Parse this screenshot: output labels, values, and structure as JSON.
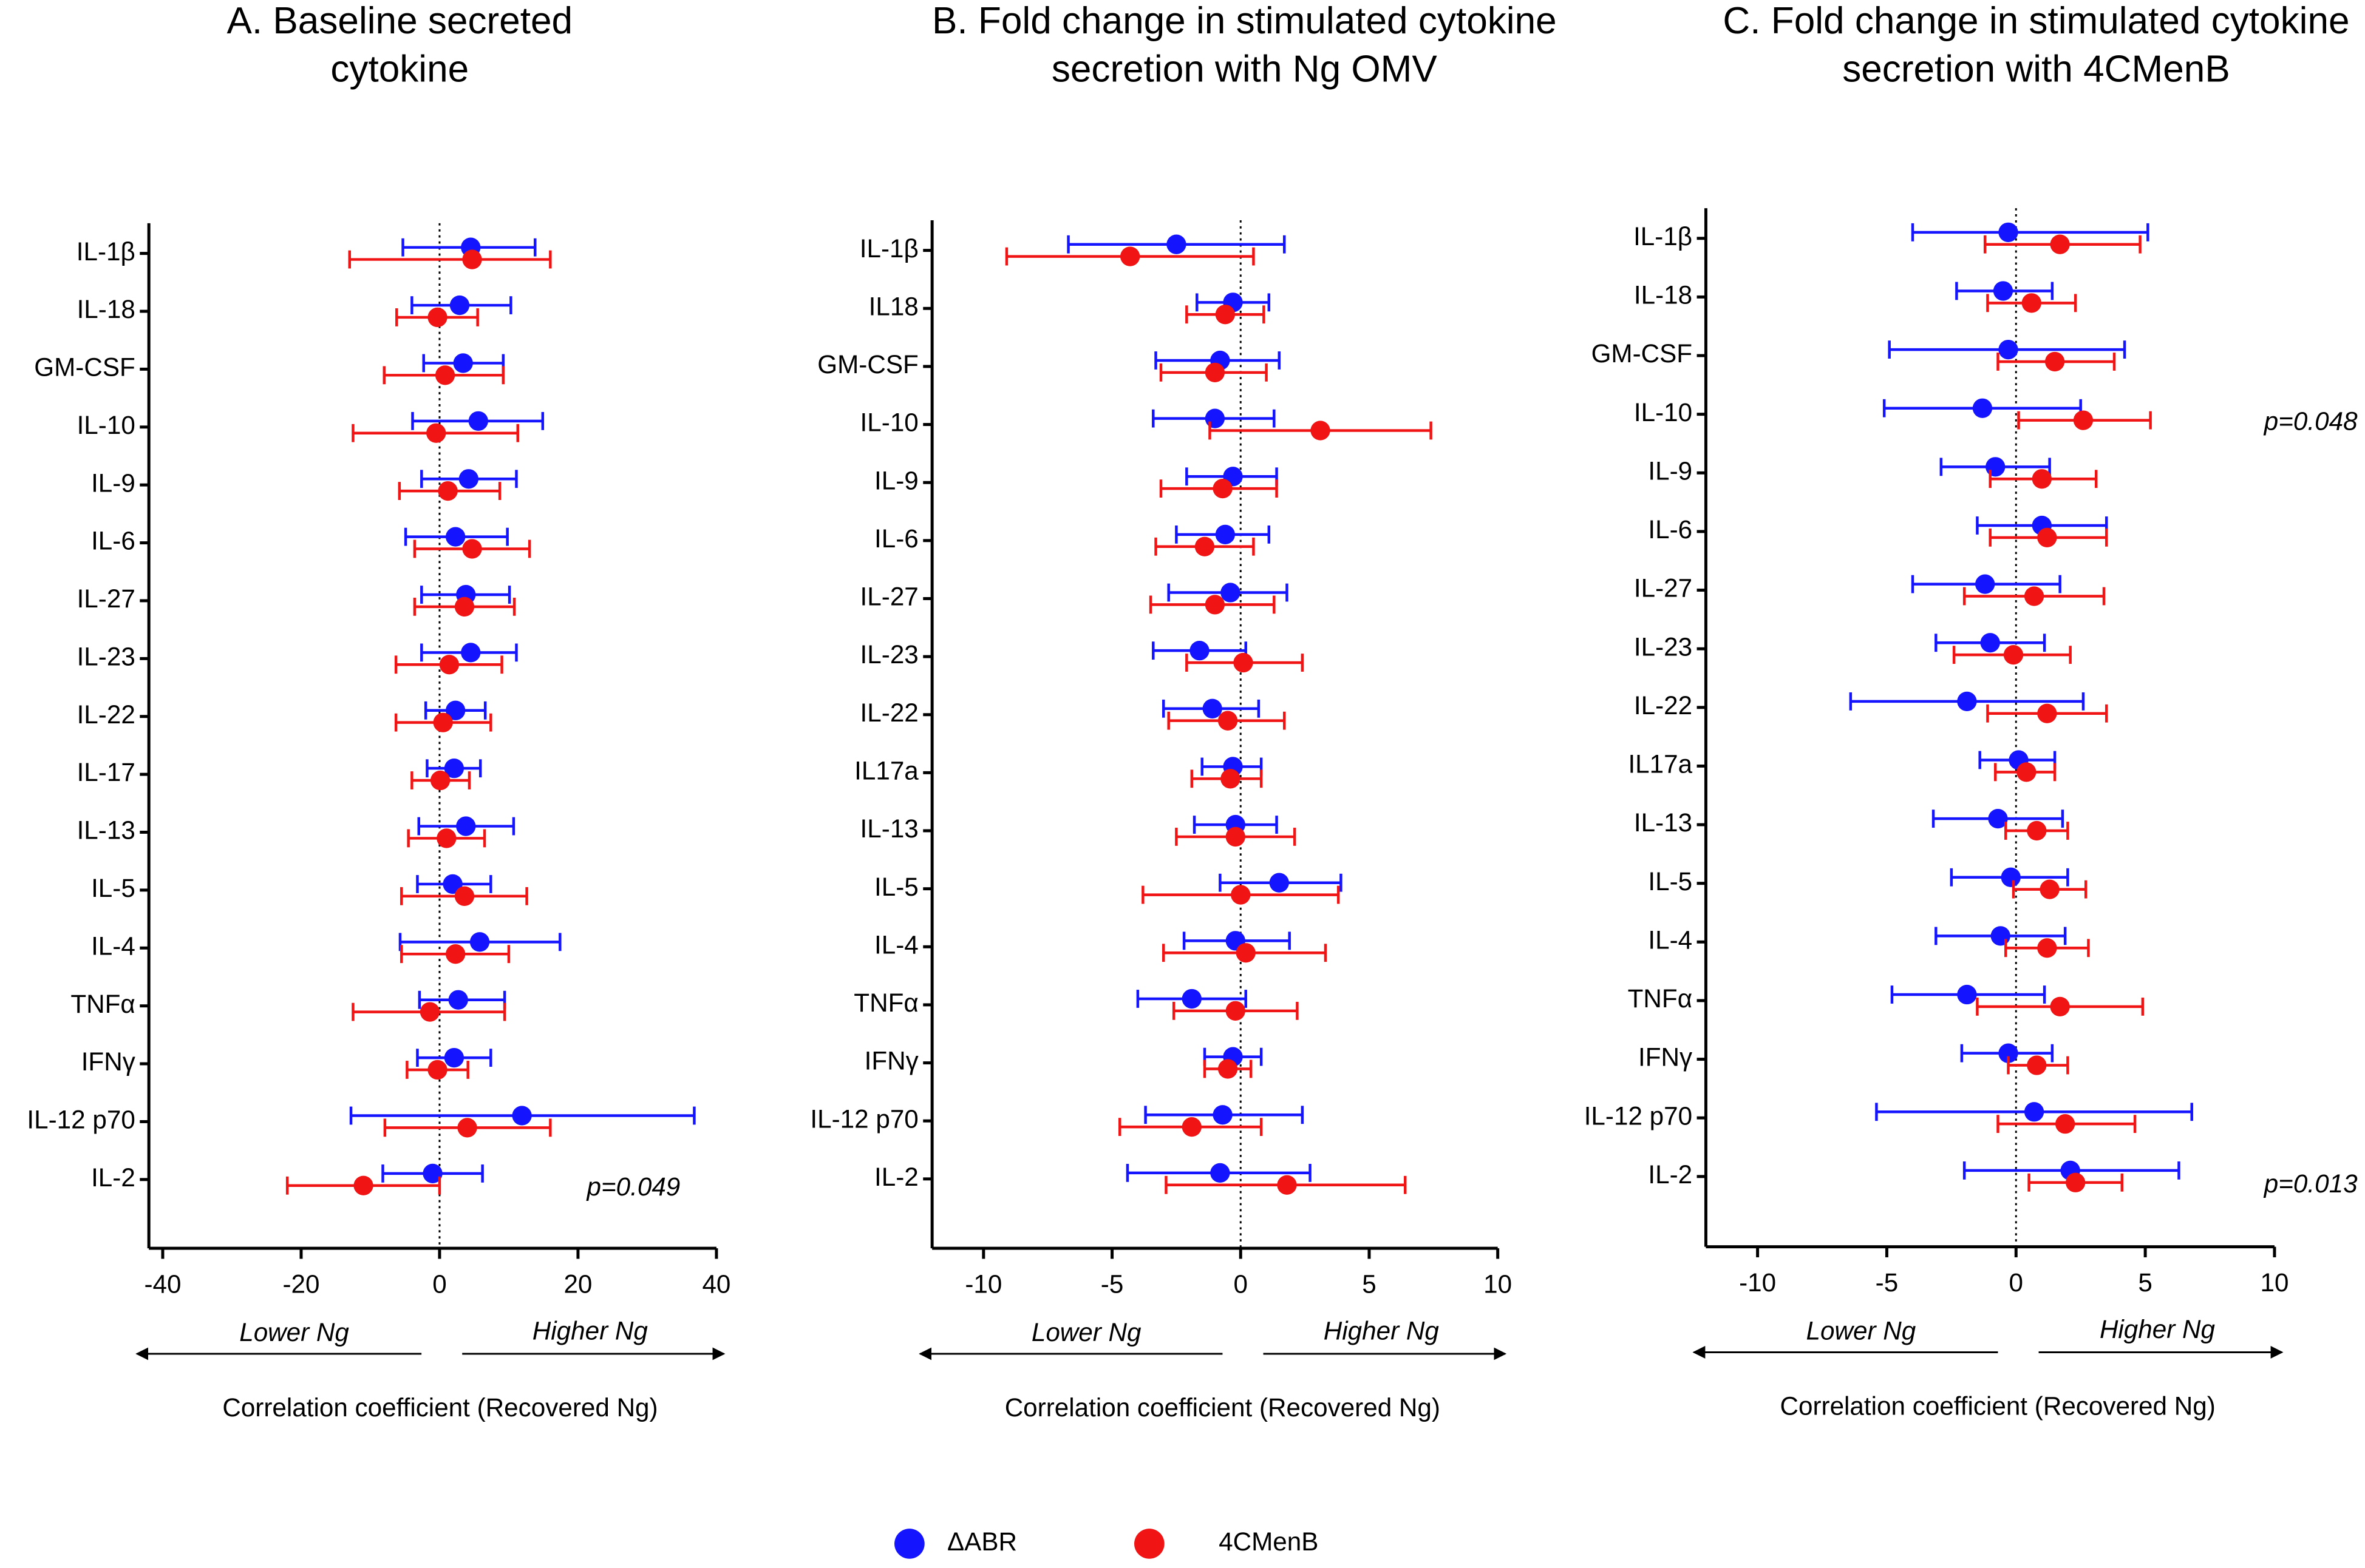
{
  "chart_data": [
    {
      "type": "forest",
      "title": "A. Baseline secreted cytokine",
      "categories": [
        "IL-1β",
        "IL-18",
        "GM-CSF",
        "IL-10",
        "IL-9",
        "IL-6",
        "IL-27",
        "IL-23",
        "IL-22",
        "IL-17",
        "IL-13",
        "IL-5",
        "IL-4",
        "TNFα",
        "IFNγ",
        "IL-12 p70",
        "IL-2"
      ],
      "series": [
        {
          "name": "ΔABR",
          "color": "#1414ff",
          "values": [
            4.5,
            2.9,
            3.4,
            5.6,
            4.2,
            2.3,
            3.8,
            4.5,
            2.3,
            2.1,
            3.8,
            1.9,
            5.8,
            2.7,
            2.1,
            11.9,
            -1
          ],
          "low": [
            -5.3,
            -4,
            -2.3,
            -3.9,
            -2.6,
            -4.9,
            -2.6,
            -2.6,
            -2,
            -1.8,
            -3,
            -3.2,
            -5.7,
            -2.9,
            -3.2,
            -12.8,
            -8.2
          ],
          "high": [
            13.8,
            10.3,
            9.2,
            14.9,
            11.1,
            9.8,
            10.1,
            11.1,
            6.6,
            5.9,
            10.7,
            7.4,
            17.4,
            9.4,
            7.4,
            36.8,
            6.2
          ]
        },
        {
          "name": "4CMenB",
          "color": "#f01414",
          "values": [
            4.7,
            -0.3,
            0.8,
            -0.5,
            1.2,
            4.7,
            3.6,
            1.4,
            0.5,
            0.1,
            1,
            3.6,
            2.3,
            -1.4,
            -0.3,
            4,
            -11
          ],
          "low": [
            -13,
            -6.2,
            -8,
            -12.5,
            -5.8,
            -3.6,
            -3.6,
            -6.3,
            -6.3,
            -4,
            -4.5,
            -5.5,
            -5.5,
            -12.5,
            -4.7,
            -7.9,
            -22
          ],
          "high": [
            16,
            5.5,
            9.2,
            11.3,
            8.7,
            13,
            10.8,
            9,
            7.4,
            4.3,
            6.5,
            12.6,
            10,
            9.4,
            4.1,
            16,
            0
          ]
        }
      ],
      "xlim": [
        -42,
        40
      ],
      "xticks": [
        -40,
        -20,
        0,
        20,
        40
      ],
      "xlabel": "Correlation coefficient (Recovered Ng)",
      "lower_label": "Lower Ng",
      "higher_label": "Higher Ng",
      "annotations": [
        {
          "text": "p=0.049",
          "category": "IL-2"
        }
      ]
    },
    {
      "type": "forest",
      "title": "B. Fold change in stimulated cytokine secretion with Ng OMV",
      "categories": [
        "IL-1β",
        "IL18",
        "GM-CSF",
        "IL-10",
        "IL-9",
        "IL-6",
        "IL-27",
        "IL-23",
        "IL-22",
        "IL17a",
        "IL-13",
        "IL-5",
        "IL-4",
        "TNFα",
        "IFNγ",
        "IL-12 p70",
        "IL-2"
      ],
      "series": [
        {
          "color": "#1414ff",
          "values": [
            -2.5,
            -0.3,
            -0.8,
            -1,
            -0.3,
            -0.6,
            -0.4,
            -1.6,
            -1.1,
            -0.3,
            -0.2,
            1.5,
            -0.2,
            -1.9,
            -0.3,
            -0.7,
            -0.8
          ],
          "low": [
            -6.7,
            -1.7,
            -3.3,
            -3.4,
            -2.1,
            -2.5,
            -2.8,
            -3.4,
            -3,
            -1.5,
            -1.8,
            -0.8,
            -2.2,
            -4,
            -1.4,
            -3.7,
            -4.4
          ],
          "high": [
            1.7,
            1.1,
            1.5,
            1.3,
            1.4,
            1.1,
            1.8,
            0.2,
            0.7,
            0.8,
            1.4,
            3.9,
            1.9,
            0.2,
            0.8,
            2.4,
            2.7
          ]
        },
        {
          "color": "#f01414",
          "values": [
            -4.3,
            -0.6,
            -1,
            3.1,
            -0.7,
            -1.4,
            -1,
            0.1,
            -0.5,
            -0.4,
            -0.2,
            0,
            0.2,
            -0.2,
            -0.5,
            -1.9,
            1.8
          ],
          "low": [
            -9.1,
            -2.1,
            -3.1,
            -1.2,
            -3.1,
            -3.3,
            -3.5,
            -2.1,
            -2.8,
            -1.9,
            -2.5,
            -3.8,
            -3,
            -2.6,
            -1.4,
            -4.7,
            -2.9
          ],
          "high": [
            0.5,
            0.9,
            1,
            7.4,
            1.4,
            0.5,
            1.3,
            2.4,
            1.7,
            0.8,
            2.1,
            3.8,
            3.3,
            2.2,
            0.4,
            0.8,
            6.4
          ]
        }
      ],
      "xlim": [
        -12,
        10
      ],
      "xticks": [
        -10,
        -5,
        0,
        5,
        10
      ],
      "xlabel": "Correlation coefficient (Recovered Ng)",
      "lower_label": "Lower Ng",
      "higher_label": "Higher Ng"
    },
    {
      "type": "forest",
      "title": "C. Fold change in stimulated cytokine secretion with 4CMenB",
      "categories": [
        "IL-1β",
        "IL-18",
        "GM-CSF",
        "IL-10",
        "IL-9",
        "IL-6",
        "IL-27",
        "IL-23",
        "IL-22",
        "IL17a",
        "IL-13",
        "IL-5",
        "IL-4",
        "TNFα",
        "IFNγ",
        "IL-12 p70",
        "IL-2"
      ],
      "series": [
        {
          "color": "#1414ff",
          "values": [
            -0.3,
            -0.5,
            -0.3,
            -1.3,
            -0.8,
            1,
            -1.2,
            -1,
            -1.9,
            0.1,
            -0.7,
            -0.2,
            -0.6,
            -1.9,
            -0.3,
            0.7,
            2.1
          ],
          "low": [
            -4,
            -2.3,
            -4.9,
            -5.1,
            -2.9,
            -1.5,
            -4,
            -3.1,
            -6.4,
            -1.4,
            -3.2,
            -2.5,
            -3.1,
            -4.8,
            -2.1,
            -5.4,
            -2
          ],
          "high": [
            5.1,
            1.4,
            4.2,
            2.5,
            1.3,
            3.5,
            1.7,
            1.1,
            2.6,
            1.5,
            1.8,
            2,
            1.9,
            1.1,
            1.4,
            6.8,
            6.3
          ]
        },
        {
          "color": "#f01414",
          "values": [
            1.7,
            0.6,
            1.5,
            2.6,
            1,
            1.2,
            0.7,
            -0.1,
            1.2,
            0.4,
            0.8,
            1.3,
            1.2,
            1.7,
            0.8,
            1.9,
            2.3
          ],
          "low": [
            -1.2,
            -1.1,
            -0.7,
            0.1,
            -1,
            -1,
            -2,
            -2.4,
            -1.1,
            -0.8,
            -0.4,
            -0.1,
            -0.4,
            -1.5,
            -0.3,
            -0.7,
            0.5
          ],
          "high": [
            4.8,
            2.3,
            3.8,
            5.2,
            3.1,
            3.5,
            3.4,
            2.1,
            3.5,
            1.5,
            2,
            2.7,
            2.8,
            4.9,
            2,
            4.6,
            4.1
          ]
        }
      ],
      "xlim": [
        -12,
        10
      ],
      "xticks": [
        -10,
        -5,
        0,
        5,
        10
      ],
      "xlabel": "Correlation coefficient (Recovered Ng)",
      "lower_label": "Lower Ng",
      "higher_label": "Higher Ng",
      "annotations": [
        {
          "text": "p=0.048",
          "category": "IL-10"
        },
        {
          "text": "p=0.013",
          "category": "IL-2"
        }
      ]
    }
  ]
}
